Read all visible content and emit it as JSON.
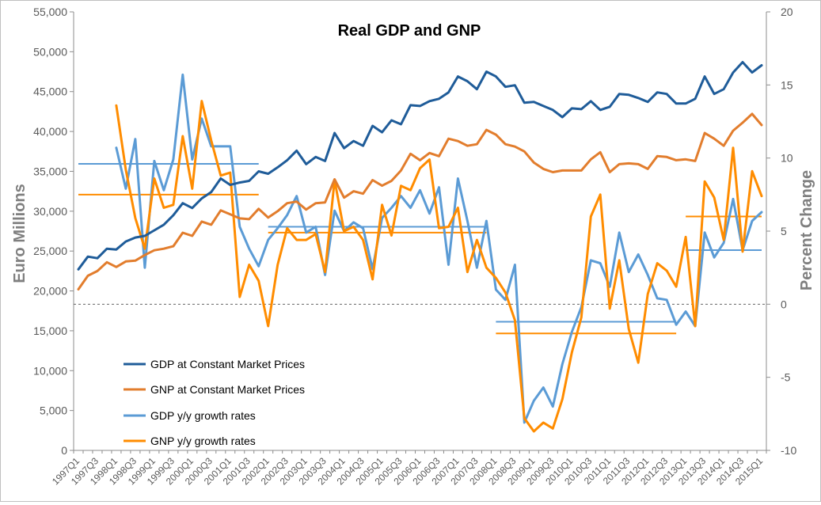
{
  "chart_data": {
    "type": "line",
    "title": "Real GDP and GNP",
    "ylabel_left": "Euro Millions",
    "ylabel_right": "Percent Change",
    "ylim_left": [
      0,
      55000
    ],
    "ylim_right": [
      -10,
      20
    ],
    "y_ticks_left": [
      "0",
      "5,000",
      "10,000",
      "15,000",
      "20,000",
      "25,000",
      "30,000",
      "35,000",
      "40,000",
      "45,000",
      "50,000",
      "55,000"
    ],
    "y_ticks_right": [
      "-10",
      "-5",
      "0",
      "5",
      "10",
      "15",
      "20"
    ],
    "grid": false,
    "legend_position": "bottom-left",
    "quarters": [
      "1997Q1",
      "1997Q2",
      "1997Q3",
      "1997Q4",
      "1998Q1",
      "1998Q2",
      "1998Q3",
      "1998Q4",
      "1999Q1",
      "1999Q2",
      "1999Q3",
      "1999Q4",
      "2000Q1",
      "2000Q2",
      "2000Q3",
      "2000Q4",
      "2001Q1",
      "2001Q2",
      "2001Q3",
      "2001Q4",
      "2002Q1",
      "2002Q2",
      "2002Q3",
      "2002Q4",
      "2003Q1",
      "2003Q2",
      "2003Q3",
      "2003Q4",
      "2004Q1",
      "2004Q2",
      "2004Q3",
      "2004Q4",
      "2005Q1",
      "2005Q2",
      "2005Q3",
      "2005Q4",
      "2006Q1",
      "2006Q2",
      "2006Q3",
      "2006Q4",
      "2007Q1",
      "2007Q2",
      "2007Q3",
      "2007Q4",
      "2008Q1",
      "2008Q2",
      "2008Q3",
      "2008Q4",
      "2009Q1",
      "2009Q2",
      "2009Q3",
      "2009Q4",
      "2010Q1",
      "2010Q2",
      "2010Q3",
      "2010Q4",
      "2011Q1",
      "2011Q2",
      "2011Q3",
      "2011Q4",
      "2012Q1",
      "2012Q2",
      "2012Q3",
      "2012Q4",
      "2013Q1",
      "2013Q2",
      "2013Q3",
      "2013Q4",
      "2014Q1",
      "2014Q2",
      "2014Q3",
      "2014Q4",
      "2015Q1"
    ],
    "x_tick_labels": [
      "1997Q1",
      "1997Q3",
      "1998Q1",
      "1998Q3",
      "1999Q1",
      "1999Q3",
      "2000Q1",
      "2000Q3",
      "2001Q1",
      "2001Q3",
      "2002Q1",
      "2002Q3",
      "2003Q1",
      "2003Q3",
      "2004Q1",
      "2004Q3",
      "2005Q1",
      "2005Q3",
      "2006Q1",
      "2006Q3",
      "2007Q1",
      "2007Q3",
      "2008Q1",
      "2008Q3",
      "2009Q1",
      "2009Q3",
      "2010Q1",
      "2010Q3",
      "2011Q1",
      "2011Q3",
      "2012Q1",
      "2012Q3",
      "2013Q1",
      "2013Q3",
      "2014Q1",
      "2014Q3",
      "2015Q1"
    ],
    "series": [
      {
        "name": "GDP at Constant Market Prices",
        "axis": "left",
        "color": "#1f5c99",
        "values": [
          22700,
          24300,
          24100,
          25300,
          25200,
          26200,
          26700,
          26900,
          27600,
          28300,
          29500,
          31000,
          30400,
          31600,
          32400,
          34100,
          33300,
          33600,
          33800,
          35000,
          34700,
          35500,
          36400,
          37600,
          35900,
          36800,
          36300,
          39800,
          37900,
          38800,
          38200,
          40700,
          39900,
          41400,
          40900,
          43300,
          43200,
          43800,
          44100,
          44900,
          46900,
          46300,
          45300,
          47500,
          46900,
          45600,
          45800,
          43600,
          43700,
          43200,
          42700,
          41800,
          42900,
          42800,
          43800,
          42700,
          43100,
          44700,
          44600,
          44200,
          43700,
          44900,
          44700,
          43500,
          43500,
          44100,
          46900,
          44700,
          45300,
          47400,
          48700,
          47400,
          48300
        ]
      },
      {
        "name": "GNP at Constant Market Prices",
        "axis": "left",
        "color": "#e27d2d",
        "values": [
          20200,
          21900,
          22500,
          23600,
          23000,
          23700,
          23800,
          24500,
          25100,
          25300,
          25600,
          27300,
          26900,
          28700,
          28300,
          30100,
          29600,
          29100,
          29000,
          30300,
          29200,
          30000,
          31000,
          31200,
          30200,
          31000,
          31100,
          34000,
          31700,
          32500,
          32200,
          33900,
          33200,
          33800,
          35100,
          37200,
          36400,
          37300,
          36900,
          39100,
          38800,
          38200,
          38400,
          40200,
          39600,
          38400,
          38100,
          37500,
          36100,
          35300,
          34900,
          35100,
          35100,
          35100,
          36500,
          37400,
          34900,
          35900,
          36000,
          35900,
          35300,
          36900,
          36800,
          36400,
          36500,
          36300,
          39800,
          39100,
          38200,
          40100,
          41100,
          42200,
          40800
        ]
      },
      {
        "name": "GDP y/y growth rates",
        "axis": "right",
        "color": "#5b9bd5",
        "values": [
          null,
          null,
          null,
          null,
          10.7,
          7.9,
          11.3,
          2.5,
          9.8,
          7.8,
          9.9,
          15.7,
          9.9,
          12.7,
          10.8,
          10.8,
          10.8,
          5.3,
          3.8,
          2.6,
          4.4,
          5.2,
          6.1,
          7.4,
          4.9,
          5.3,
          2.0,
          6.4,
          5.0,
          5.6,
          5.2,
          2.4,
          5.9,
          6.6,
          7.4,
          6.6,
          7.8,
          6.2,
          8.0,
          2.7,
          8.6,
          5.7,
          2.5,
          5.7,
          1.0,
          0.3,
          2.7,
          -8.1,
          -6.6,
          -5.7,
          -7.0,
          -4.1,
          -1.9,
          -0.2,
          3.0,
          2.8,
          1.2,
          4.9,
          2.2,
          3.4,
          2.0,
          0.4,
          0.3,
          -1.4,
          -0.5,
          -1.5,
          4.9,
          3.2,
          4.2,
          7.2,
          3.7,
          5.7,
          6.3
        ]
      },
      {
        "name": "GNP y/y growth rates",
        "axis": "right",
        "color": "#ff8c00",
        "values": [
          null,
          null,
          null,
          null,
          13.6,
          9.2,
          5.9,
          3.8,
          8.6,
          6.6,
          6.8,
          11.5,
          7.9,
          13.9,
          11.2,
          8.8,
          9.0,
          0.5,
          2.7,
          1.6,
          -1.5,
          2.7,
          5.2,
          4.4,
          4.4,
          4.8,
          2.2,
          8.5,
          5.0,
          5.3,
          4.4,
          1.7,
          6.8,
          4.7,
          8.1,
          7.8,
          9.3,
          9.9,
          5.2,
          5.3,
          6.6,
          2.2,
          4.4,
          2.5,
          1.8,
          0.8,
          -1.1,
          -7.8,
          -8.7,
          -8.1,
          -8.5,
          -6.5,
          -3.3,
          -0.9,
          6.0,
          7.5,
          -0.3,
          3.0,
          -1.7,
          -4.0,
          0.7,
          2.8,
          2.3,
          1.2,
          4.6,
          -1.5,
          8.4,
          7.3,
          4.4,
          10.7,
          3.6,
          9.1,
          7.4
        ]
      }
    ],
    "reference_lines": [
      {
        "color": "#5b9bd5",
        "axis": "right",
        "value": 9.6,
        "from": "1997Q1",
        "to": "2001Q4"
      },
      {
        "color": "#ff8c00",
        "axis": "right",
        "value": 7.5,
        "from": "1997Q1",
        "to": "2001Q4"
      },
      {
        "color": "#5b9bd5",
        "axis": "right",
        "value": 5.3,
        "from": "2002Q1",
        "to": "2007Q4"
      },
      {
        "color": "#ff8c00",
        "axis": "right",
        "value": 4.9,
        "from": "2002Q1",
        "to": "2007Q4"
      },
      {
        "color": "#5b9bd5",
        "axis": "right",
        "value": -1.2,
        "from": "2008Q1",
        "to": "2012Q4"
      },
      {
        "color": "#ff8c00",
        "axis": "right",
        "value": -2.0,
        "from": "2008Q1",
        "to": "2012Q4"
      },
      {
        "color": "#ff8c00",
        "axis": "right",
        "value": 6.0,
        "from": "2013Q1",
        "to": "2015Q1"
      },
      {
        "color": "#5b9bd5",
        "axis": "right",
        "value": 3.7,
        "from": "2013Q1",
        "to": "2015Q1"
      }
    ],
    "zero_line": {
      "axis": "right",
      "value": 0,
      "style": "dashed",
      "color": "#666666"
    }
  }
}
